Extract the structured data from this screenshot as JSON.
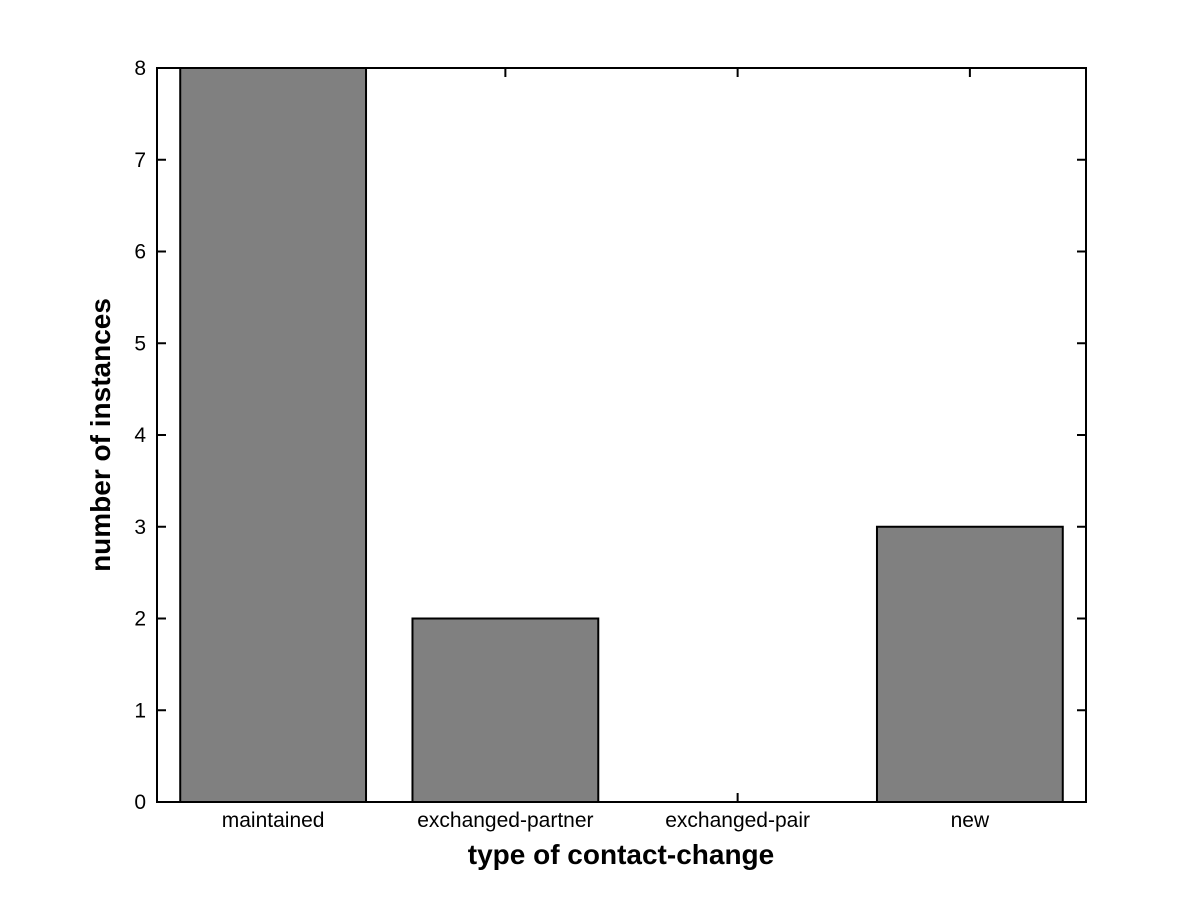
{
  "figure": {
    "background": "#ffffff"
  },
  "chart_data": {
    "type": "bar",
    "categories": [
      "maintained",
      "exchanged-partner",
      "exchanged-pair",
      "new"
    ],
    "values": [
      8,
      2,
      0,
      3
    ],
    "title": "",
    "xlabel": "type of contact-change",
    "ylabel": "number of instances",
    "ylim": [
      0,
      8
    ],
    "yticks": [
      0,
      1,
      2,
      3,
      4,
      5,
      6,
      7,
      8
    ],
    "grid": false,
    "legend_position": "none",
    "bar_color": "#808080",
    "bar_edge_color": "#000000",
    "axis_color": "#000000",
    "bar_width_fraction": 0.8
  }
}
